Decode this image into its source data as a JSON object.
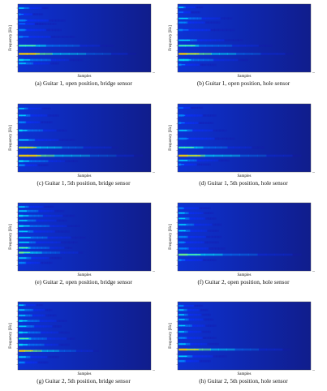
{
  "chart_data": [
    {
      "type": "heatmap",
      "caption": "(a) Guitar 1, open position, bridge sensor",
      "xlabel": "Samples",
      "ylabel": "Frequency [Hz]",
      "colors": [
        "#1818b0",
        "#0b2fff",
        "#0088ff",
        "#00e6ff",
        "#6fff88",
        "#ffd400"
      ],
      "bands": [
        {
          "y": 0.06,
          "intensity": 0.48,
          "length": 0.22
        },
        {
          "y": 0.15,
          "intensity": 0.34,
          "length": 0.18
        },
        {
          "y": 0.24,
          "intensity": 0.38,
          "length": 0.35
        },
        {
          "y": 0.29,
          "intensity": 0.27,
          "length": 0.28
        },
        {
          "y": 0.38,
          "intensity": 0.38,
          "length": 0.32
        },
        {
          "y": 0.48,
          "intensity": 0.35,
          "length": 0.42
        },
        {
          "y": 0.61,
          "intensity": 0.69,
          "length": 0.71
        },
        {
          "y": 0.73,
          "intensity": 0.92,
          "length": 0.88
        },
        {
          "y": 0.82,
          "intensity": 0.55,
          "length": 0.48
        },
        {
          "y": 0.87,
          "intensity": 0.49,
          "length": 0.3
        }
      ]
    },
    {
      "type": "heatmap",
      "caption": "(b) Guitar 1, open position, hole sensor",
      "xlabel": "Samples",
      "ylabel": "Frequency [Hz]",
      "colors": [
        "#1818b0",
        "#0b2fff",
        "#0088ff",
        "#00e6ff",
        "#6fff88",
        "#ffd400"
      ],
      "bands": [
        {
          "y": 0.05,
          "intensity": 0.42,
          "length": 0.18
        },
        {
          "y": 0.12,
          "intensity": 0.32,
          "length": 0.16
        },
        {
          "y": 0.21,
          "intensity": 0.5,
          "length": 0.4
        },
        {
          "y": 0.27,
          "intensity": 0.4,
          "length": 0.31
        },
        {
          "y": 0.38,
          "intensity": 0.34,
          "length": 0.42
        },
        {
          "y": 0.53,
          "intensity": 0.45,
          "length": 0.48
        },
        {
          "y": 0.61,
          "intensity": 0.63,
          "length": 0.7
        },
        {
          "y": 0.73,
          "intensity": 0.88,
          "length": 0.86
        },
        {
          "y": 0.82,
          "intensity": 0.58,
          "length": 0.52
        },
        {
          "y": 0.89,
          "intensity": 0.35,
          "length": 0.28
        }
      ]
    },
    {
      "type": "heatmap",
      "caption": "(c) Guitar 1, 5th position, bridge sensor",
      "xlabel": "Samples",
      "ylabel": "Frequency [Hz]",
      "colors": [
        "#1818b0",
        "#0b2fff",
        "#0088ff",
        "#00e6ff",
        "#6fff88",
        "#ffd400"
      ],
      "bands": [
        {
          "y": 0.07,
          "intensity": 0.42,
          "length": 0.24
        },
        {
          "y": 0.17,
          "intensity": 0.45,
          "length": 0.3
        },
        {
          "y": 0.27,
          "intensity": 0.4,
          "length": 0.25
        },
        {
          "y": 0.39,
          "intensity": 0.55,
          "length": 0.36
        },
        {
          "y": 0.53,
          "intensity": 0.43,
          "length": 0.42
        },
        {
          "y": 0.64,
          "intensity": 0.76,
          "length": 0.75
        },
        {
          "y": 0.76,
          "intensity": 0.92,
          "length": 0.93
        },
        {
          "y": 0.84,
          "intensity": 0.55,
          "length": 0.44
        },
        {
          "y": 0.9,
          "intensity": 0.4,
          "length": 0.22
        }
      ]
    },
    {
      "type": "heatmap",
      "caption": "(d) Guitar 1, 5th position, hole sensor",
      "xlabel": "Samples",
      "ylabel": "Frequency [Hz]",
      "colors": [
        "#1818b0",
        "#0b2fff",
        "#0088ff",
        "#00e6ff",
        "#6fff88",
        "#ffd400"
      ],
      "bands": [
        {
          "y": 0.06,
          "intensity": 0.3,
          "length": 0.18
        },
        {
          "y": 0.17,
          "intensity": 0.38,
          "length": 0.28
        },
        {
          "y": 0.28,
          "intensity": 0.35,
          "length": 0.26
        },
        {
          "y": 0.39,
          "intensity": 0.45,
          "length": 0.36
        },
        {
          "y": 0.51,
          "intensity": 0.38,
          "length": 0.42
        },
        {
          "y": 0.64,
          "intensity": 0.65,
          "length": 0.64
        },
        {
          "y": 0.76,
          "intensity": 0.86,
          "length": 0.92
        },
        {
          "y": 0.83,
          "intensity": 0.48,
          "length": 0.38
        },
        {
          "y": 0.89,
          "intensity": 0.35,
          "length": 0.24
        }
      ]
    },
    {
      "type": "heatmap",
      "caption": "(e) Guitar 2, open position, bridge sensor",
      "xlabel": "Samples",
      "ylabel": "Frequency [Hz]",
      "colors": [
        "#1818b0",
        "#0b2fff",
        "#0088ff",
        "#00e6ff",
        "#6fff88",
        "#ffd400"
      ],
      "bands": [
        {
          "y": 0.06,
          "intensity": 0.45,
          "length": 0.26
        },
        {
          "y": 0.12,
          "intensity": 0.5,
          "length": 0.34
        },
        {
          "y": 0.19,
          "intensity": 0.52,
          "length": 0.42
        },
        {
          "y": 0.26,
          "intensity": 0.48,
          "length": 0.36
        },
        {
          "y": 0.34,
          "intensity": 0.55,
          "length": 0.46
        },
        {
          "y": 0.42,
          "intensity": 0.42,
          "length": 0.38
        },
        {
          "y": 0.51,
          "intensity": 0.5,
          "length": 0.5
        },
        {
          "y": 0.58,
          "intensity": 0.45,
          "length": 0.44
        },
        {
          "y": 0.66,
          "intensity": 0.62,
          "length": 0.4
        },
        {
          "y": 0.73,
          "intensity": 0.74,
          "length": 0.48
        },
        {
          "y": 0.81,
          "intensity": 0.42,
          "length": 0.32
        },
        {
          "y": 0.88,
          "intensity": 0.4,
          "length": 0.25
        }
      ]
    },
    {
      "type": "heatmap",
      "caption": "(f) Guitar 2, open position, hole sensor",
      "xlabel": "Samples",
      "ylabel": "Frequency [Hz]",
      "colors": [
        "#1818b0",
        "#0b2fff",
        "#0088ff",
        "#00e6ff",
        "#6fff88",
        "#ffd400"
      ],
      "bands": [
        {
          "y": 0.08,
          "intensity": 0.38,
          "length": 0.24
        },
        {
          "y": 0.15,
          "intensity": 0.42,
          "length": 0.26
        },
        {
          "y": 0.23,
          "intensity": 0.45,
          "length": 0.28
        },
        {
          "y": 0.32,
          "intensity": 0.48,
          "length": 0.32
        },
        {
          "y": 0.41,
          "intensity": 0.45,
          "length": 0.3
        },
        {
          "y": 0.5,
          "intensity": 0.4,
          "length": 0.32
        },
        {
          "y": 0.58,
          "intensity": 0.38,
          "length": 0.3
        },
        {
          "y": 0.67,
          "intensity": 0.4,
          "length": 0.35
        },
        {
          "y": 0.76,
          "intensity": 0.72,
          "length": 0.92
        },
        {
          "y": 0.84,
          "intensity": 0.36,
          "length": 0.28
        }
      ]
    },
    {
      "type": "heatmap",
      "caption": "(g) Guitar 2, 5th position, bridge sensor",
      "xlabel": "Samples",
      "ylabel": "Frequency [Hz]",
      "colors": [
        "#1818b0",
        "#0b2fff",
        "#0088ff",
        "#00e6ff",
        "#6fff88",
        "#ffd400"
      ],
      "bands": [
        {
          "y": 0.05,
          "intensity": 0.45,
          "length": 0.18
        },
        {
          "y": 0.12,
          "intensity": 0.5,
          "length": 0.25
        },
        {
          "y": 0.2,
          "intensity": 0.46,
          "length": 0.28
        },
        {
          "y": 0.28,
          "intensity": 0.52,
          "length": 0.36
        },
        {
          "y": 0.36,
          "intensity": 0.48,
          "length": 0.32
        },
        {
          "y": 0.45,
          "intensity": 0.52,
          "length": 0.38
        },
        {
          "y": 0.54,
          "intensity": 0.6,
          "length": 0.42
        },
        {
          "y": 0.63,
          "intensity": 0.55,
          "length": 0.38
        },
        {
          "y": 0.72,
          "intensity": 0.88,
          "length": 0.6
        },
        {
          "y": 0.81,
          "intensity": 0.44,
          "length": 0.3
        },
        {
          "y": 0.89,
          "intensity": 0.4,
          "length": 0.22
        }
      ]
    },
    {
      "type": "heatmap",
      "caption": "(h) Guitar 2, 5th position, hole sensor",
      "xlabel": "Samples",
      "ylabel": "Frequency [Hz]",
      "colors": [
        "#1818b0",
        "#0b2fff",
        "#0088ff",
        "#00e6ff",
        "#6fff88",
        "#ffd400"
      ],
      "bands": [
        {
          "y": 0.06,
          "intensity": 0.4,
          "length": 0.18
        },
        {
          "y": 0.12,
          "intensity": 0.45,
          "length": 0.22
        },
        {
          "y": 0.19,
          "intensity": 0.42,
          "length": 0.24
        },
        {
          "y": 0.26,
          "intensity": 0.44,
          "length": 0.26
        },
        {
          "y": 0.35,
          "intensity": 0.46,
          "length": 0.28
        },
        {
          "y": 0.44,
          "intensity": 0.42,
          "length": 0.24
        },
        {
          "y": 0.53,
          "intensity": 0.4,
          "length": 0.28
        },
        {
          "y": 0.62,
          "intensity": 0.43,
          "length": 0.3
        },
        {
          "y": 0.7,
          "intensity": 0.88,
          "length": 0.84
        },
        {
          "y": 0.8,
          "intensity": 0.45,
          "length": 0.36
        },
        {
          "y": 0.87,
          "intensity": 0.4,
          "length": 0.24
        }
      ]
    }
  ]
}
